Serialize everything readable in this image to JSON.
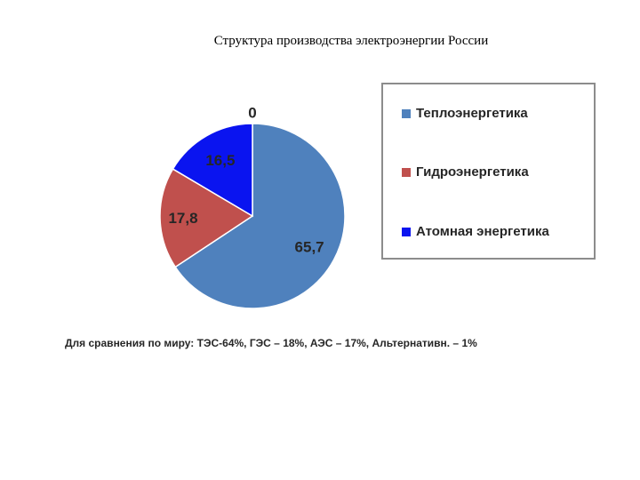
{
  "slide": {
    "title": "Структура производства электроэнергии России",
    "footnote": "Для сравнения по миру: ТЭС-64%, ГЭС – 18%, АЭС – 17%, Альтернативн. – 1%"
  },
  "chart_data": {
    "type": "pie",
    "categories": [
      "Теплоэнергетика",
      "Гидроэнергетика",
      "Атомная энергетика",
      ""
    ],
    "values": [
      65.7,
      17.8,
      16.5,
      0
    ],
    "data_labels": [
      "65,7",
      "17,8",
      "16,5",
      "0"
    ],
    "colors": [
      "#4f81bd",
      "#c0504d",
      "#0a14f0",
      "#4f81bd"
    ],
    "legend": {
      "placement": "right",
      "entries": [
        "Теплоэнергетика",
        "Гидроэнергетика",
        "Атомная энергетика"
      ]
    }
  }
}
